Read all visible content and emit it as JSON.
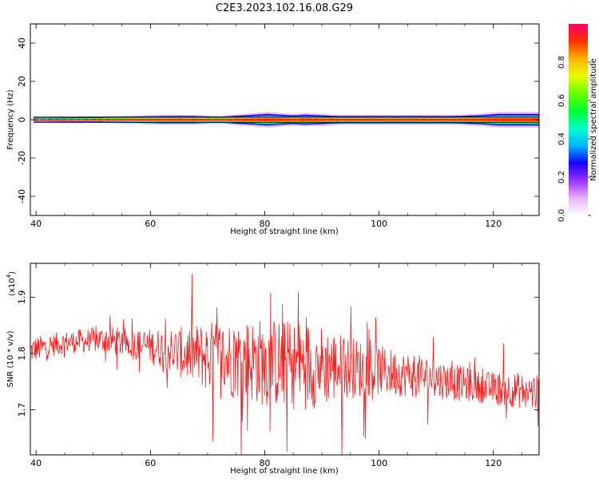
{
  "figure": {
    "title": "C2E3.2023.102.16.08.G29"
  },
  "chart_data": [
    {
      "type": "heatmap",
      "name": "spectrogram",
      "xlabel": "Height of straight line (km)",
      "ylabel": "Frequency (Hz)",
      "xlim": [
        39,
        128
      ],
      "ylim": [
        -50,
        50
      ],
      "xticks": [
        40,
        60,
        80,
        100,
        120
      ],
      "yticks": [
        -40,
        -20,
        0,
        20,
        40
      ],
      "grid": false,
      "colormap": "hue-spectrum",
      "band_center_hz": 0,
      "band": [
        {
          "x": 39.5,
          "halfwidth_hz": 1.2,
          "amp": 0.9
        },
        {
          "x": 48,
          "halfwidth_hz": 1.5,
          "amp": 0.85
        },
        {
          "x": 62,
          "halfwidth_hz": 2.5,
          "amp": 0.85
        },
        {
          "x": 64,
          "halfwidth_hz": 2.5,
          "amp": 0.8
        },
        {
          "x": 67.5,
          "halfwidth_hz": 2.5,
          "amp": 0.85
        },
        {
          "x": 72,
          "halfwidth_hz": 2,
          "amp": 0.85
        },
        {
          "x": 80.5,
          "halfwidth_hz": 4,
          "amp": 0.75
        },
        {
          "x": 85,
          "halfwidth_hz": 3,
          "amp": 0.8
        },
        {
          "x": 87,
          "halfwidth_hz": 3.5,
          "amp": 0.8
        },
        {
          "x": 93,
          "halfwidth_hz": 2.5,
          "amp": 0.85
        },
        {
          "x": 95,
          "halfwidth_hz": 2.5,
          "amp": 0.85
        },
        {
          "x": 113,
          "halfwidth_hz": 2.5,
          "amp": 0.85
        },
        {
          "x": 117,
          "halfwidth_hz": 3,
          "amp": 0.85
        },
        {
          "x": 121,
          "halfwidth_hz": 4,
          "amp": 0.8
        },
        {
          "x": 124,
          "halfwidth_hz": 4,
          "amp": 0.8
        },
        {
          "x": 127,
          "halfwidth_hz": 4,
          "amp": 0.8
        }
      ]
    },
    {
      "type": "line",
      "name": "snr",
      "xlabel": "Height of straight line (km)",
      "ylabel": "SNR (10 * v/v)",
      "ymultiplier_label": "(x10",
      "ymultiplier_exp": "4",
      "xlim": [
        39,
        128
      ],
      "ylim": [
        1.62,
        1.96
      ],
      "xticks": [
        40,
        60,
        80,
        100,
        120
      ],
      "yticks": [
        1.7,
        1.8,
        1.9
      ],
      "grid": false,
      "color": "#ee2222",
      "envelope": [
        {
          "x": 39,
          "center": 1.805,
          "amp": 0.03
        },
        {
          "x": 45,
          "center": 1.82,
          "amp": 0.025
        },
        {
          "x": 52,
          "center": 1.825,
          "amp": 0.03
        },
        {
          "x": 58,
          "center": 1.815,
          "amp": 0.035
        },
        {
          "x": 62,
          "center": 1.81,
          "amp": 0.045
        },
        {
          "x": 66,
          "center": 1.8,
          "amp": 0.06
        },
        {
          "x": 70,
          "center": 1.795,
          "amp": 0.08
        },
        {
          "x": 75,
          "center": 1.79,
          "amp": 0.09
        },
        {
          "x": 80,
          "center": 1.785,
          "amp": 0.1
        },
        {
          "x": 85,
          "center": 1.78,
          "amp": 0.1
        },
        {
          "x": 88,
          "center": 1.78,
          "amp": 0.1
        },
        {
          "x": 95,
          "center": 1.775,
          "amp": 0.07
        },
        {
          "x": 100,
          "center": 1.77,
          "amp": 0.055
        },
        {
          "x": 110,
          "center": 1.755,
          "amp": 0.045
        },
        {
          "x": 118,
          "center": 1.74,
          "amp": 0.035
        },
        {
          "x": 124,
          "center": 1.735,
          "amp": 0.04
        },
        {
          "x": 128,
          "center": 1.73,
          "amp": 0.04
        }
      ]
    }
  ],
  "colorbar": {
    "label": "Normalized spectral amplitude",
    "range": [
      0,
      1
    ],
    "ticks": [
      {
        "value": 0.0,
        "label": "0.0"
      },
      {
        "value": 0.2,
        "label": "0.2"
      },
      {
        "value": 0.4,
        "label": "0.4"
      },
      {
        "value": 0.6,
        "label": "0.6"
      },
      {
        "value": 0.8,
        "label": "0.8"
      }
    ],
    "colors": [
      "#ffffff",
      "#e6b3ff",
      "#9a33ff",
      "#1a00ff",
      "#00b3ff",
      "#00ffcc",
      "#00ff33",
      "#66ff00",
      "#e6ff00",
      "#ffb300",
      "#ff3300",
      "#ff0066"
    ]
  }
}
